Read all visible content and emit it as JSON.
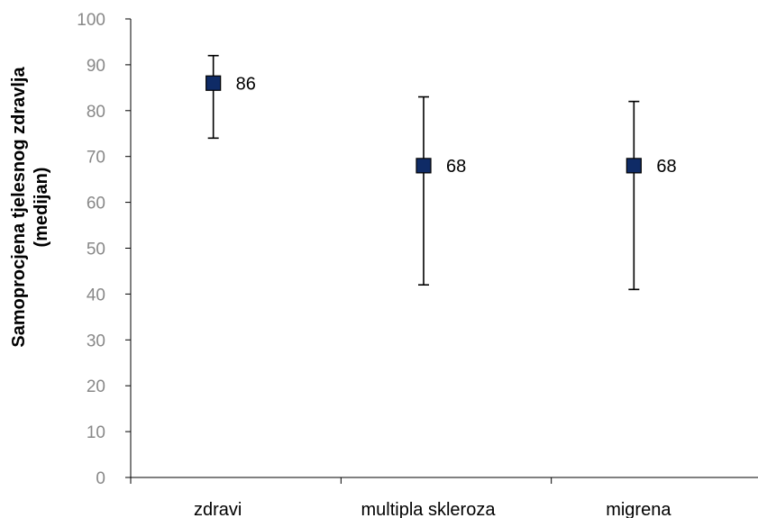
{
  "chart_data": {
    "type": "scatter",
    "ylabel": [
      "Samoprocjena tjelesnog zdravlja",
      "(medijan)"
    ],
    "ylim": [
      0,
      100
    ],
    "yticks": [
      0,
      10,
      20,
      30,
      40,
      50,
      60,
      70,
      80,
      90,
      100
    ],
    "categories": [
      "zdravi",
      "multipla skleroza",
      "migrena"
    ],
    "series": [
      {
        "values": [
          86,
          68,
          68
        ],
        "error_low": [
          74,
          42,
          41
        ],
        "error_high": [
          92,
          83,
          82
        ],
        "data_labels": [
          "86",
          "68",
          "68"
        ]
      }
    ],
    "marker": "square",
    "marker_color": "#0f2b66",
    "error_bar_color": "#000000",
    "grid": false,
    "legend": "none"
  }
}
